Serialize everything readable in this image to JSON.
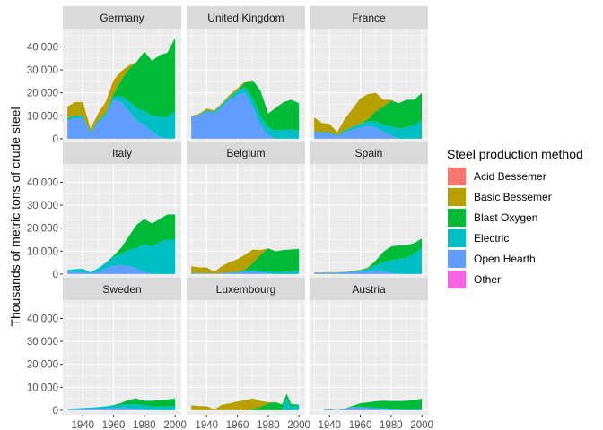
{
  "chart_data": {
    "type": "area",
    "stacked": true,
    "facets": [
      "Germany",
      "United Kingdom",
      "France",
      "Italy",
      "Belgium",
      "Spain",
      "Sweden",
      "Luxembourg",
      "Austria"
    ],
    "ylabel": "Thousands of metric tons of crude steel",
    "xlabel": "",
    "ylim": [
      -2000,
      48000
    ],
    "xlim": [
      1927,
      2004
    ],
    "y_ticks": [
      0,
      10000,
      20000,
      30000,
      40000
    ],
    "y_tick_labels": [
      "0",
      "10 000",
      "20 000",
      "30 000",
      "40 000"
    ],
    "x_ticks": [
      1940,
      1960,
      1980,
      2000
    ],
    "x_tick_labels": [
      "1940",
      "1960",
      "1980",
      "2000"
    ],
    "grid": true,
    "legend": {
      "title": "Steel production method",
      "position": "right",
      "entries": [
        {
          "name": "Acid Bessemer",
          "color": "#F8766D"
        },
        {
          "name": "Basic Bessemer",
          "color": "#B79F00"
        },
        {
          "name": "Blast Oxygen",
          "color": "#00BA38"
        },
        {
          "name": "Electric",
          "color": "#00BFC4"
        },
        {
          "name": "Open Hearth",
          "color": "#619CFF"
        },
        {
          "name": "Other",
          "color": "#F564E3"
        }
      ]
    },
    "series_order": [
      "Other",
      "Open Hearth",
      "Electric",
      "Blast Oxygen",
      "Basic Bessemer",
      "Acid Bessemer"
    ],
    "panels": [
      {
        "name": "Germany",
        "years": [
          1930,
          1935,
          1940,
          1945,
          1950,
          1955,
          1960,
          1965,
          1970,
          1975,
          1980,
          1985,
          1990,
          1995,
          2000
        ],
        "series": {
          "Acid Bessemer": [
            0,
            0,
            0,
            0,
            0,
            0,
            0,
            0,
            0,
            0,
            0,
            0,
            0,
            0,
            0
          ],
          "Basic Bessemer": [
            5000,
            6000,
            6000,
            1500,
            3000,
            5000,
            6000,
            4000,
            1500,
            0,
            0,
            0,
            0,
            0,
            0
          ],
          "Blast Oxygen": [
            0,
            0,
            0,
            0,
            0,
            0,
            1000,
            7000,
            14000,
            20000,
            26000,
            24000,
            27000,
            28000,
            32000
          ],
          "Electric": [
            1000,
            1000,
            1000,
            500,
            1000,
            1200,
            1500,
            2500,
            4500,
            5500,
            6000,
            7000,
            8500,
            9500,
            12000
          ],
          "Open Hearth": [
            8000,
            9000,
            9000,
            2500,
            7000,
            10000,
            17000,
            16000,
            12000,
            8000,
            6000,
            3000,
            1000,
            0,
            0
          ],
          "Other": [
            0,
            0,
            0,
            0,
            0,
            0,
            0,
            0,
            0,
            0,
            0,
            0,
            0,
            0,
            0
          ]
        }
      },
      {
        "name": "United Kingdom",
        "years": [
          1930,
          1935,
          1940,
          1945,
          1950,
          1955,
          1960,
          1965,
          1970,
          1975,
          1980,
          1985,
          1990,
          1995,
          2000
        ],
        "series": {
          "Acid Bessemer": [
            0,
            0,
            0,
            0,
            0,
            0,
            0,
            0,
            0,
            0,
            0,
            0,
            0,
            0,
            0
          ],
          "Basic Bessemer": [
            300,
            500,
            700,
            600,
            600,
            900,
            1000,
            500,
            0,
            0,
            0,
            0,
            0,
            0,
            0
          ],
          "Blast Oxygen": [
            0,
            0,
            0,
            0,
            0,
            0,
            0,
            2000,
            8000,
            11000,
            6000,
            10000,
            12000,
            13000,
            12000
          ],
          "Electric": [
            200,
            300,
            500,
            800,
            1000,
            1300,
            2000,
            2500,
            3500,
            4000,
            3500,
            3500,
            4000,
            4000,
            3500
          ],
          "Open Hearth": [
            9500,
            10000,
            12000,
            11000,
            14000,
            17000,
            19000,
            20000,
            14000,
            6000,
            1500,
            0,
            0,
            0,
            0
          ],
          "Other": [
            0,
            0,
            0,
            0,
            0,
            0,
            0,
            0,
            0,
            0,
            0,
            0,
            0,
            0,
            0
          ]
        }
      },
      {
        "name": "France",
        "years": [
          1930,
          1935,
          1940,
          1945,
          1950,
          1955,
          1960,
          1965,
          1970,
          1975,
          1980,
          1985,
          1990,
          1995,
          2000
        ],
        "series": {
          "Acid Bessemer": [
            0,
            0,
            0,
            0,
            0,
            0,
            0,
            0,
            0,
            0,
            0,
            0,
            0,
            0,
            0
          ],
          "Basic Bessemer": [
            6000,
            4000,
            3500,
            1500,
            5000,
            8000,
            11000,
            11000,
            8000,
            3000,
            500,
            0,
            0,
            0,
            0
          ],
          "Blast Oxygen": [
            0,
            0,
            0,
            0,
            0,
            0,
            0,
            1000,
            4500,
            8000,
            11000,
            11000,
            12000,
            11000,
            12000
          ],
          "Electric": [
            300,
            400,
            500,
            400,
            800,
            1200,
            1600,
            2000,
            2500,
            3000,
            4000,
            4500,
            5000,
            6000,
            8000
          ],
          "Open Hearth": [
            3000,
            2500,
            2500,
            1000,
            3000,
            4000,
            5000,
            5500,
            5000,
            3000,
            1500,
            0,
            0,
            0,
            0
          ],
          "Other": [
            0,
            0,
            0,
            0,
            0,
            0,
            0,
            0,
            0,
            0,
            0,
            0,
            0,
            0,
            0
          ]
        }
      },
      {
        "name": "Italy",
        "years": [
          1930,
          1935,
          1940,
          1945,
          1950,
          1955,
          1960,
          1965,
          1970,
          1975,
          1980,
          1985,
          1990,
          1995,
          2000
        ],
        "series": {
          "Acid Bessemer": [
            0,
            0,
            0,
            0,
            0,
            0,
            0,
            0,
            0,
            0,
            0,
            0,
            0,
            0,
            0
          ],
          "Basic Bessemer": [
            0,
            0,
            0,
            0,
            0,
            0,
            0,
            0,
            0,
            0,
            0,
            0,
            0,
            0,
            0
          ],
          "Blast Oxygen": [
            0,
            0,
            0,
            0,
            0,
            0,
            500,
            2500,
            6000,
            10000,
            11000,
            10000,
            10000,
            11000,
            11000
          ],
          "Electric": [
            1000,
            1200,
            1500,
            500,
            1500,
            2500,
            4000,
            5000,
            7000,
            9000,
            12000,
            12000,
            14000,
            15000,
            15000
          ],
          "Open Hearth": [
            800,
            900,
            800,
            300,
            1000,
            2500,
            3500,
            4000,
            3500,
            2500,
            1000,
            0,
            0,
            0,
            0
          ],
          "Other": [
            0,
            0,
            0,
            0,
            0,
            0,
            0,
            0,
            0,
            0,
            0,
            0,
            0,
            0,
            0
          ]
        }
      },
      {
        "name": "Belgium",
        "years": [
          1930,
          1935,
          1940,
          1945,
          1950,
          1955,
          1960,
          1965,
          1970,
          1975,
          1980,
          1985,
          1990,
          1995,
          2000
        ],
        "series": {
          "Acid Bessemer": [
            0,
            0,
            0,
            0,
            0,
            0,
            0,
            0,
            0,
            0,
            0,
            0,
            0,
            0,
            0
          ],
          "Basic Bessemer": [
            3000,
            2500,
            2500,
            800,
            3000,
            4500,
            5500,
            6500,
            6000,
            2000,
            0,
            0,
            0,
            0,
            0
          ],
          "Blast Oxygen": [
            0,
            0,
            0,
            0,
            0,
            0,
            0,
            500,
            3000,
            7000,
            10000,
            9000,
            9500,
            9500,
            9500
          ],
          "Electric": [
            100,
            100,
            100,
            100,
            150,
            200,
            300,
            500,
            700,
            800,
            900,
            900,
            1000,
            1200,
            1500
          ],
          "Open Hearth": [
            300,
            300,
            300,
            100,
            300,
            500,
            700,
            900,
            1000,
            600,
            300,
            0,
            0,
            0,
            0
          ],
          "Other": [
            0,
            0,
            0,
            0,
            0,
            0,
            0,
            0,
            0,
            0,
            0,
            0,
            0,
            0,
            0
          ]
        }
      },
      {
        "name": "Spain",
        "years": [
          1930,
          1935,
          1940,
          1945,
          1950,
          1955,
          1960,
          1965,
          1970,
          1975,
          1980,
          1985,
          1990,
          1995,
          2000
        ],
        "series": {
          "Acid Bessemer": [
            0,
            0,
            0,
            0,
            0,
            0,
            0,
            0,
            0,
            0,
            0,
            0,
            0,
            0,
            0
          ],
          "Basic Bessemer": [
            200,
            200,
            200,
            150,
            150,
            200,
            200,
            200,
            100,
            0,
            0,
            0,
            0,
            0,
            0
          ],
          "Blast Oxygen": [
            0,
            0,
            0,
            0,
            0,
            0,
            0,
            300,
            2000,
            4500,
            6000,
            6000,
            5500,
            4500,
            4000
          ],
          "Electric": [
            100,
            100,
            150,
            150,
            200,
            400,
            700,
            1200,
            2500,
            4000,
            5500,
            6500,
            7000,
            9000,
            11500
          ],
          "Open Hearth": [
            400,
            400,
            500,
            500,
            600,
            800,
            1000,
            1200,
            1300,
            1200,
            500,
            0,
            0,
            0,
            0
          ],
          "Other": [
            0,
            0,
            0,
            0,
            0,
            0,
            0,
            0,
            0,
            0,
            0,
            0,
            0,
            0,
            0
          ]
        }
      },
      {
        "name": "Sweden",
        "years": [
          1930,
          1935,
          1940,
          1945,
          1950,
          1955,
          1960,
          1965,
          1970,
          1975,
          1980,
          1985,
          1990,
          1995,
          2000
        ],
        "series": {
          "Acid Bessemer": [
            0,
            0,
            0,
            0,
            0,
            0,
            0,
            0,
            0,
            0,
            0,
            0,
            0,
            0,
            0
          ],
          "Basic Bessemer": [
            0,
            0,
            0,
            0,
            0,
            0,
            0,
            0,
            0,
            0,
            0,
            0,
            0,
            0,
            0
          ],
          "Blast Oxygen": [
            0,
            0,
            0,
            0,
            0,
            0,
            200,
            800,
            2000,
            2500,
            2000,
            2500,
            2800,
            3000,
            3200
          ],
          "Electric": [
            200,
            300,
            400,
            500,
            700,
            900,
            1200,
            1500,
            1800,
            2000,
            1800,
            1600,
            1600,
            1700,
            1900
          ],
          "Open Hearth": [
            400,
            500,
            600,
            600,
            700,
            800,
            900,
            900,
            800,
            600,
            300,
            0,
            0,
            0,
            0
          ],
          "Other": [
            0,
            0,
            0,
            0,
            0,
            0,
            0,
            0,
            0,
            0,
            0,
            0,
            0,
            0,
            0
          ]
        }
      },
      {
        "name": "Luxembourg",
        "years": [
          1930,
          1935,
          1940,
          1945,
          1950,
          1955,
          1960,
          1965,
          1970,
          1975,
          1980,
          1985,
          1989,
          1992,
          1995,
          2000
        ],
        "series": {
          "Acid Bessemer": [
            0,
            0,
            0,
            0,
            0,
            0,
            0,
            0,
            0,
            0,
            0,
            0,
            0,
            0,
            0,
            0
          ],
          "Basic Bessemer": [
            2200,
            1800,
            1800,
            300,
            2400,
            3000,
            3800,
            4400,
            4800,
            2500,
            500,
            0,
            0,
            0,
            0,
            0
          ],
          "Blast Oxygen": [
            0,
            0,
            0,
            0,
            0,
            0,
            0,
            0,
            400,
            1500,
            3000,
            3500,
            2500,
            2000,
            1500,
            0
          ],
          "Electric": [
            0,
            0,
            0,
            0,
            0,
            0,
            0,
            0,
            0,
            0,
            0,
            0,
            0,
            5200,
            1200,
            2500
          ],
          "Open Hearth": [
            0,
            0,
            0,
            0,
            0,
            0,
            0,
            0,
            0,
            0,
            0,
            0,
            0,
            0,
            0,
            0
          ],
          "Other": [
            0,
            0,
            0,
            0,
            0,
            0,
            0,
            0,
            0,
            0,
            0,
            0,
            0,
            0,
            0,
            0
          ]
        }
      },
      {
        "name": "Austria",
        "years": [
          1935,
          1940,
          1945,
          1950,
          1955,
          1960,
          1965,
          1970,
          1975,
          1980,
          1985,
          1990,
          1995,
          2000
        ],
        "series": {
          "Acid Bessemer": [
            0,
            0,
            0,
            0,
            0,
            0,
            0,
            0,
            0,
            0,
            0,
            0,
            0,
            0
          ],
          "Basic Bessemer": [
            0,
            0,
            0,
            0,
            0,
            0,
            0,
            0,
            0,
            0,
            0,
            0,
            0,
            0
          ],
          "Blast Oxygen": [
            0,
            0,
            0,
            0,
            500,
            1500,
            2200,
            2800,
            3200,
            3300,
            3500,
            3600,
            3800,
            4400
          ],
          "Electric": [
            0,
            0,
            0,
            100,
            200,
            300,
            400,
            500,
            500,
            500,
            500,
            500,
            600,
            700
          ],
          "Open Hearth": [
            0,
            600,
            0,
            800,
            1200,
            1300,
            800,
            600,
            400,
            200,
            0,
            0,
            0,
            0
          ],
          "Other": [
            0,
            0,
            0,
            0,
            0,
            0,
            0,
            0,
            0,
            0,
            0,
            0,
            0,
            0
          ]
        }
      }
    ]
  }
}
